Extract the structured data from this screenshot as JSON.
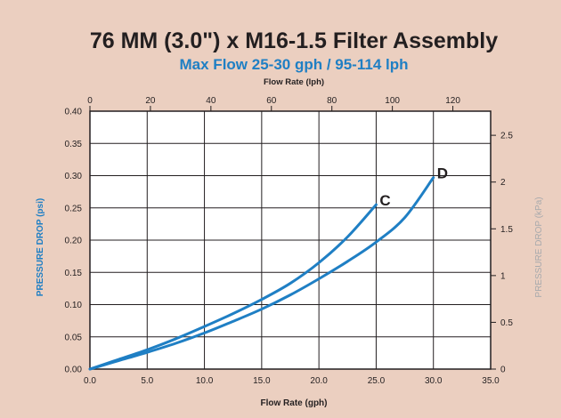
{
  "chart_data": {
    "type": "line",
    "title": "76 MM (3.0\") x M16-1.5 Filter Assembly",
    "subtitle": "Max Flow 25-30 gph / 95-114 lph",
    "xlabel": "Flow Rate (gph)",
    "x2label": "Flow Rate (lph)",
    "ylabel": "PRESSURE DROP (psi)",
    "y2label": "PRESSURE DROP (kPa)",
    "xlim": [
      0,
      35
    ],
    "ylim": [
      0,
      0.4
    ],
    "x2lim": [
      0,
      132.5
    ],
    "y2lim": [
      0,
      2.758
    ],
    "x_ticks": [
      "0.0",
      "5.0",
      "10.0",
      "15.0",
      "20.0",
      "25.0",
      "30.0",
      "35.0"
    ],
    "y_ticks": [
      "0.00",
      "0.05",
      "0.10",
      "0.15",
      "0.20",
      "0.25",
      "0.30",
      "0.35",
      "0.40"
    ],
    "x2_ticks": [
      "0",
      "20",
      "40",
      "60",
      "80",
      "100",
      "120"
    ],
    "y2_ticks": [
      "0",
      "0.5",
      "1",
      "1.5",
      "2",
      "2.5"
    ],
    "grid": true,
    "colors": {
      "series": "#1f7fc4",
      "title": "#231f20",
      "subtitle": "#1f7fc4",
      "ylabel": "#1f7fc4",
      "y2label": "#a7a9ac",
      "background": "#ebcfc0",
      "plot_bg": "#ffffff"
    },
    "series": [
      {
        "name": "C",
        "x": [
          0,
          2.5,
          5,
          7.5,
          10,
          12.5,
          15,
          17.5,
          20,
          22.5,
          25
        ],
        "y": [
          0,
          0.015,
          0.03,
          0.047,
          0.066,
          0.086,
          0.108,
          0.133,
          0.165,
          0.205,
          0.255
        ]
      },
      {
        "name": "D",
        "x": [
          0,
          2.5,
          5,
          7.5,
          10,
          12.5,
          15,
          17.5,
          20,
          22.5,
          25,
          27.5,
          30
        ],
        "y": [
          0,
          0.013,
          0.026,
          0.04,
          0.056,
          0.074,
          0.093,
          0.115,
          0.14,
          0.167,
          0.197,
          0.235,
          0.297
        ]
      }
    ]
  }
}
